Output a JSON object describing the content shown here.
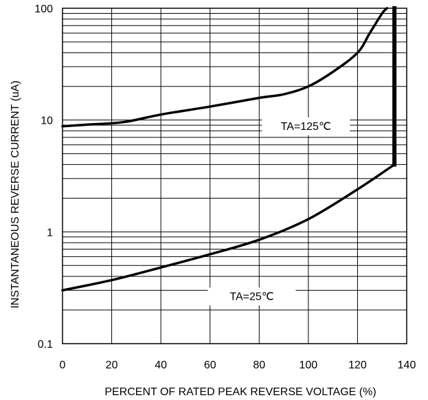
{
  "chart_data": {
    "type": "line",
    "title": "",
    "xlabel": "PERCENT OF RATED PEAK REVERSE VOLTAGE (%)",
    "ylabel": "INSTANTANEOUS REVERSE CURRENT (uA)",
    "xlim": [
      0,
      140
    ],
    "ylim": [
      0.1,
      100
    ],
    "yscale": "log",
    "grid": true,
    "legend": "none",
    "x_ticks": [
      0,
      20,
      40,
      60,
      80,
      100,
      120,
      140
    ],
    "x_tick_labels": [
      "0",
      "20",
      "40",
      "60",
      "80",
      "100",
      "120",
      "140"
    ],
    "y_ticks": [
      0.1,
      1,
      10,
      100
    ],
    "y_tick_labels": [
      "0.1",
      "1",
      "10",
      "100"
    ],
    "series": [
      {
        "name": "TA=125℃",
        "color": "#000000",
        "x": [
          0,
          10,
          25,
          40,
          60,
          80,
          90,
          100,
          110,
          120,
          125,
          130,
          132
        ],
        "y": [
          8.8,
          9.1,
          9.6,
          11.2,
          13.2,
          15.8,
          17.0,
          20.0,
          27.0,
          40.0,
          60.0,
          90.0,
          100.0
        ]
      },
      {
        "name": "TA=25℃",
        "color": "#000000",
        "x": [
          0,
          20,
          40,
          60,
          80,
          100,
          120,
          135
        ],
        "y": [
          0.3,
          0.37,
          0.48,
          0.63,
          0.85,
          1.3,
          2.4,
          4.0
        ]
      },
      {
        "name": "",
        "color": "#000000",
        "x": [
          135,
          135
        ],
        "y": [
          4.0,
          100.0
        ]
      }
    ]
  }
}
